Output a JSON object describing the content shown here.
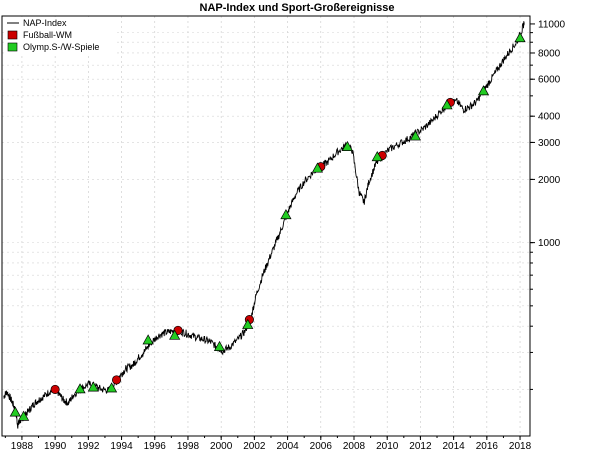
{
  "chart_data": {
    "type": "line",
    "title": "NAP-Index und Sport-Großereignisse",
    "xlabel": "",
    "ylabel": "",
    "y_scale": "log",
    "x_range": [
      1986.8,
      2018.6
    ],
    "y_range": [
      120,
      12000
    ],
    "grid": true,
    "legend_position": "top-left",
    "x_tick_labels": [
      "1988",
      "1990",
      "1992",
      "1994",
      "1996",
      "1998",
      "2000",
      "2002",
      "2004",
      "2006",
      "2008",
      "2010",
      "2012",
      "2014",
      "2016",
      "2018"
    ],
    "y_tick_labels": [
      "11000",
      "8000",
      "6000",
      "4000",
      "3000",
      "2000",
      "1000"
    ],
    "y_tick_values": [
      11000,
      8000,
      6000,
      4000,
      3000,
      2000,
      1000
    ],
    "series": [
      {
        "name": "NAP-Index",
        "color": "#000000",
        "points": [
          [
            1986.9,
            185
          ],
          [
            1987.1,
            195
          ],
          [
            1987.4,
            175
          ],
          [
            1987.6,
            160
          ],
          [
            1987.75,
            135
          ],
          [
            1987.9,
            142
          ],
          [
            1988.1,
            148
          ],
          [
            1988.4,
            158
          ],
          [
            1988.7,
            170
          ],
          [
            1989.0,
            178
          ],
          [
            1989.3,
            185
          ],
          [
            1989.7,
            196
          ],
          [
            1990.0,
            200
          ],
          [
            1990.2,
            192
          ],
          [
            1990.5,
            178
          ],
          [
            1990.8,
            172
          ],
          [
            1991.1,
            188
          ],
          [
            1991.5,
            200
          ],
          [
            1992.0,
            212
          ],
          [
            1992.4,
            208
          ],
          [
            1992.8,
            200
          ],
          [
            1993.2,
            198
          ],
          [
            1993.6,
            212
          ],
          [
            1994.0,
            238
          ],
          [
            1994.3,
            252
          ],
          [
            1994.7,
            262
          ],
          [
            1995.0,
            282
          ],
          [
            1995.4,
            305
          ],
          [
            1995.8,
            335
          ],
          [
            1996.2,
            360
          ],
          [
            1996.6,
            372
          ],
          [
            1997.0,
            378
          ],
          [
            1997.4,
            382
          ],
          [
            1997.8,
            372
          ],
          [
            1998.2,
            362
          ],
          [
            1998.6,
            352
          ],
          [
            1999.0,
            345
          ],
          [
            1999.4,
            335
          ],
          [
            1999.8,
            315
          ],
          [
            2000.1,
            305
          ],
          [
            2000.5,
            318
          ],
          [
            2001.0,
            345
          ],
          [
            2001.4,
            375
          ],
          [
            2001.8,
            440
          ],
          [
            2002.1,
            560
          ],
          [
            2002.5,
            700
          ],
          [
            2002.9,
            840
          ],
          [
            2003.3,
            1000
          ],
          [
            2003.7,
            1200
          ],
          [
            2004.1,
            1450
          ],
          [
            2004.5,
            1700
          ],
          [
            2005.0,
            1950
          ],
          [
            2005.5,
            2150
          ],
          [
            2006.0,
            2300
          ],
          [
            2006.5,
            2450
          ],
          [
            2007.0,
            2700
          ],
          [
            2007.5,
            2900
          ],
          [
            2007.9,
            2750
          ],
          [
            2008.3,
            1750
          ],
          [
            2008.6,
            1550
          ],
          [
            2008.9,
            1950
          ],
          [
            2009.3,
            2350
          ],
          [
            2009.7,
            2600
          ],
          [
            2010.2,
            2800
          ],
          [
            2010.7,
            2950
          ],
          [
            2011.2,
            3100
          ],
          [
            2011.7,
            3300
          ],
          [
            2012.2,
            3500
          ],
          [
            2012.7,
            3800
          ],
          [
            2013.2,
            4200
          ],
          [
            2013.7,
            4600
          ],
          [
            2014.2,
            4700
          ],
          [
            2014.6,
            4300
          ],
          [
            2015.0,
            4450
          ],
          [
            2015.4,
            4700
          ],
          [
            2015.8,
            5300
          ],
          [
            2016.2,
            5900
          ],
          [
            2016.6,
            6600
          ],
          [
            2017.0,
            7400
          ],
          [
            2017.4,
            8200
          ],
          [
            2017.8,
            9000
          ],
          [
            2018.1,
            10200
          ],
          [
            2018.25,
            11200
          ]
        ]
      },
      {
        "name": "Fußball-WM",
        "color": "#cc0000",
        "marker": "circle",
        "points": [
          [
            1990.0,
            200
          ],
          [
            1993.7,
            222
          ],
          [
            1997.4,
            382
          ],
          [
            2001.7,
            430
          ],
          [
            2006.0,
            2300
          ],
          [
            2009.7,
            2600
          ],
          [
            2013.8,
            4650
          ]
        ]
      },
      {
        "name": "Olymp.S-/W-Spiele",
        "color": "#22cc22",
        "marker": "triangle",
        "points": [
          [
            1987.6,
            155
          ],
          [
            1988.1,
            148
          ],
          [
            1991.5,
            200
          ],
          [
            1992.3,
            204
          ],
          [
            1993.4,
            202
          ],
          [
            1995.6,
            342
          ],
          [
            1997.2,
            360
          ],
          [
            1999.9,
            318
          ],
          [
            2001.6,
            405
          ],
          [
            2003.9,
            1350
          ],
          [
            2005.8,
            2250
          ],
          [
            2007.6,
            2850
          ],
          [
            2009.4,
            2550
          ],
          [
            2011.7,
            3200
          ],
          [
            2013.6,
            4500
          ],
          [
            2015.8,
            5250
          ],
          [
            2018.0,
            9400
          ]
        ]
      }
    ]
  }
}
